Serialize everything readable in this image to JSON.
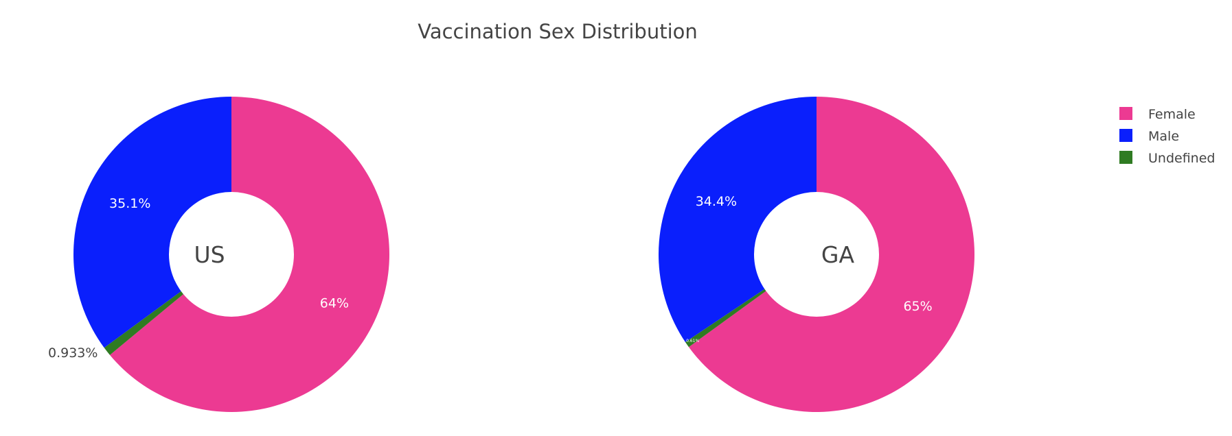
{
  "chart_data": {
    "type": "pie",
    "title": "Vaccination Sex Distribution",
    "legend_position": "top-right",
    "legend": [
      {
        "label": "Female",
        "color": "#ec3a92"
      },
      {
        "label": "Male",
        "color": "#0a1ffc"
      },
      {
        "label": "Undefined",
        "color": "#2f7b22"
      }
    ],
    "hole": true,
    "charts": [
      {
        "center_label": "US",
        "slices": [
          {
            "label": "Female",
            "value": 64,
            "text": "64%",
            "color": "#ec3a92"
          },
          {
            "label": "Undefined",
            "value": 0.933,
            "text": "0.933%",
            "color": "#2f7b22"
          },
          {
            "label": "Male",
            "value": 35.1,
            "text": "35.1%",
            "color": "#0a1ffc"
          }
        ]
      },
      {
        "center_label": "GA",
        "slices": [
          {
            "label": "Female",
            "value": 65,
            "text": "65%",
            "color": "#ec3a92"
          },
          {
            "label": "Undefined",
            "value": 0.61,
            "text": "0.61%",
            "color": "#2f7b22"
          },
          {
            "label": "Male",
            "value": 34.4,
            "text": "34.4%",
            "color": "#0a1ffc"
          }
        ]
      }
    ]
  }
}
